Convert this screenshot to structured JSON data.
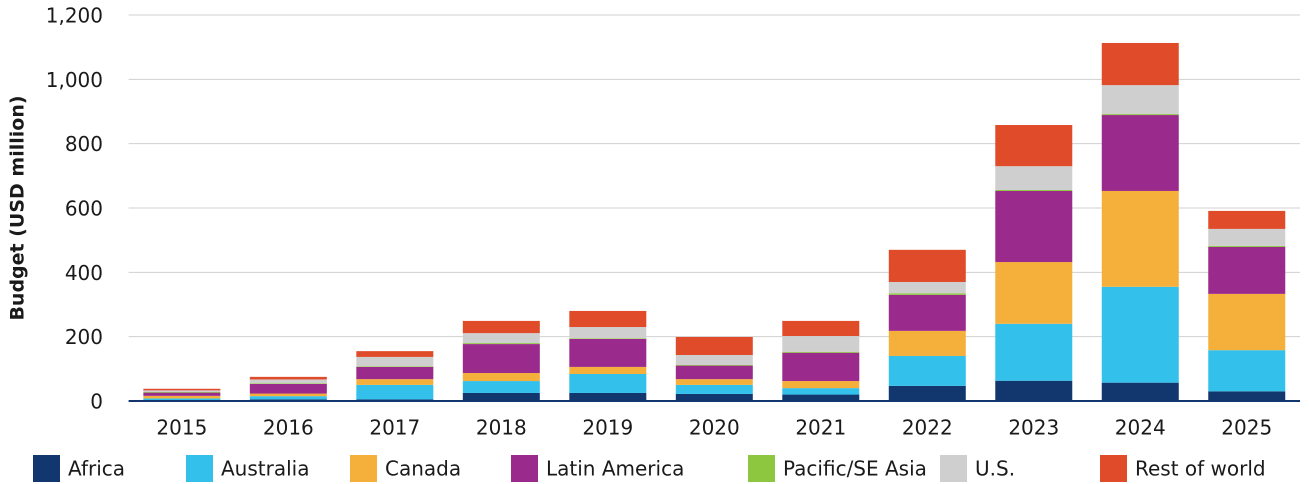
{
  "chart_data": {
    "type": "stacked_bar",
    "y_label": "Budget (USD million)",
    "categories": [
      "2015",
      "2016",
      "2017",
      "2018",
      "2019",
      "2020",
      "2021",
      "2022",
      "2023",
      "2024",
      "2025"
    ],
    "series": [
      {
        "name": "Africa",
        "color": "#12366e",
        "values": [
          3,
          5,
          5,
          25,
          25,
          22,
          20,
          47,
          63,
          57,
          30
        ]
      },
      {
        "name": "Australia",
        "color": "#33c1ec",
        "values": [
          5,
          10,
          45,
          37,
          59,
          28,
          20,
          93,
          177,
          298,
          128
        ]
      },
      {
        "name": "Canada",
        "color": "#f4b03b",
        "values": [
          8,
          8,
          18,
          25,
          22,
          18,
          22,
          78,
          192,
          298,
          175
        ]
      },
      {
        "name": "Latin America",
        "color": "#9a2a8c",
        "values": [
          10,
          30,
          38,
          90,
          87,
          42,
          88,
          112,
          221,
          236,
          146
        ]
      },
      {
        "name": "Pacific/SE Asia",
        "color": "#8dc63f",
        "values": [
          2,
          2,
          2,
          3,
          2,
          2,
          3,
          5,
          3,
          3,
          3
        ]
      },
      {
        "name": "U.S.",
        "color": "#cfcfcf",
        "values": [
          5,
          12,
          29,
          31,
          35,
          31,
          49,
          35,
          74,
          90,
          53
        ]
      },
      {
        "name": "Rest of world",
        "color": "#e04b2a",
        "values": [
          5,
          8,
          18,
          38,
          50,
          56,
          47,
          100,
          128,
          131,
          56
        ]
      }
    ],
    "ylim": [
      0,
      1200
    ],
    "yticks": [
      0,
      200,
      400,
      600,
      800,
      {
        "value": 1000,
        "label": "1,000"
      },
      {
        "value": 1200,
        "label": "1,200"
      }
    ],
    "grid": true,
    "legend": "bottom"
  }
}
